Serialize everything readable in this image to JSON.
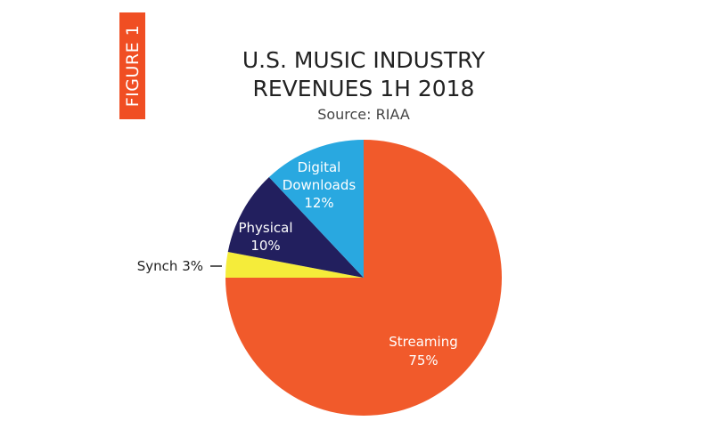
{
  "badge": "FIGURE 1",
  "chart_data": {
    "type": "pie",
    "title": [
      "U.S. MUSIC INDUSTRY",
      "REVENUES 1H 2018"
    ],
    "subtitle": "Source: RIAA",
    "slices": [
      {
        "label": "Streaming",
        "value": 75,
        "display": "75%",
        "color": "#f15a2b"
      },
      {
        "label": "Synch",
        "value": 3,
        "display": "3%",
        "color": "#f5ec3a"
      },
      {
        "label": "Physical",
        "value": 10,
        "display": "10%",
        "color": "#221f5e"
      },
      {
        "label": "Digital Downloads",
        "value": 12,
        "display": "12%",
        "color": "#29a8e0"
      }
    ],
    "start": "12 o'clock",
    "direction": "clockwise"
  }
}
